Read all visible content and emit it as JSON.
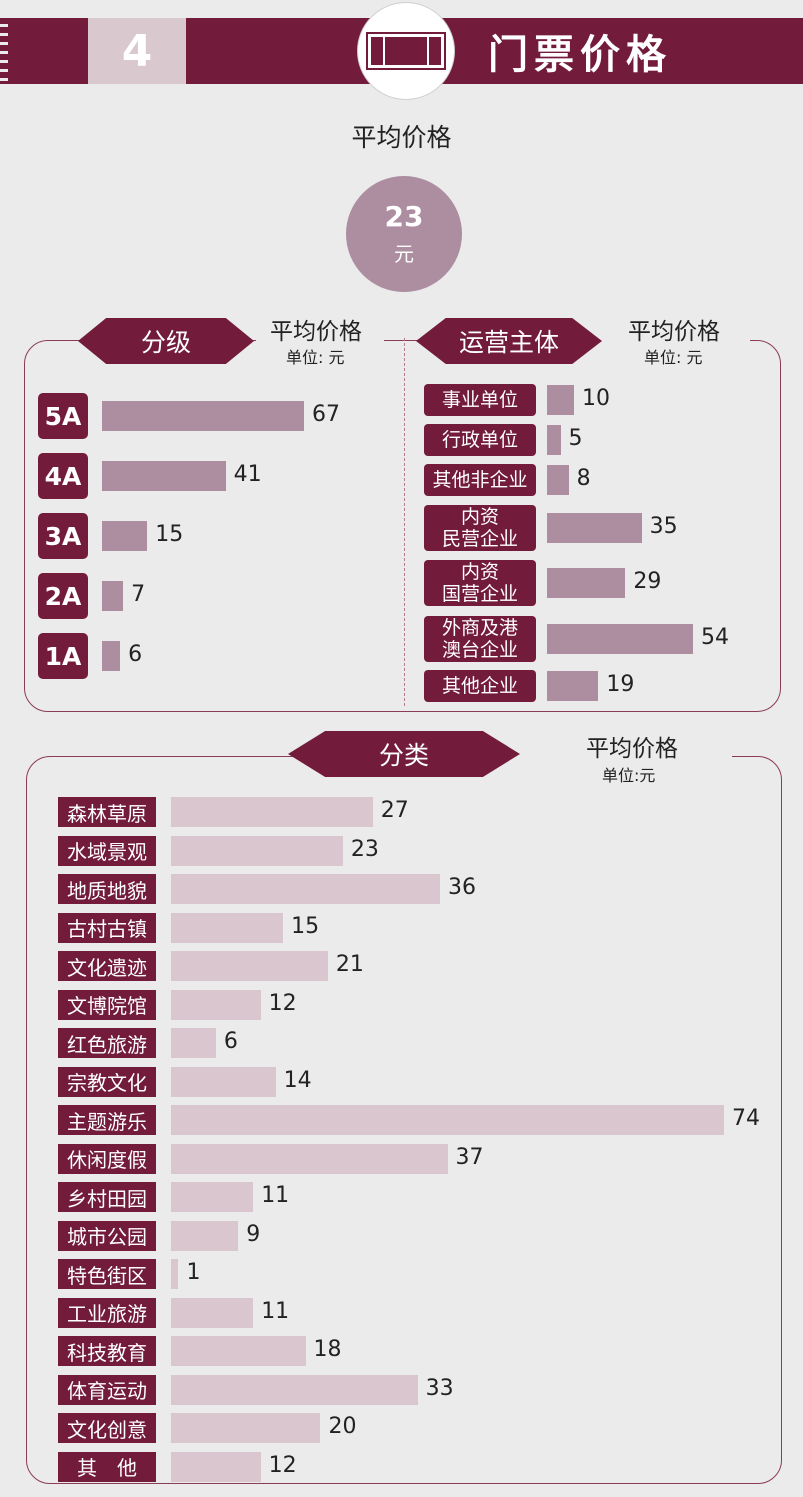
{
  "header": {
    "number": "4",
    "title": "门票价格"
  },
  "overall": {
    "label": "平均价格",
    "value": "23",
    "unit": "元"
  },
  "chart_data": [
    {
      "type": "bar",
      "title": "分级",
      "subtitle": "平均价格",
      "unit_label": "单位: 元",
      "categories": [
        "5A",
        "4A",
        "3A",
        "2A",
        "1A"
      ],
      "values": [
        67,
        41,
        15,
        7,
        6
      ]
    },
    {
      "type": "bar",
      "title": "运营主体",
      "subtitle": "平均价格",
      "unit_label": "单位: 元",
      "categories": [
        "事业单位",
        "行政单位",
        "其他非企业",
        "内资\n民营企业",
        "内资\n国营企业",
        "外商及港\n澳台企业",
        "其他企业"
      ],
      "values": [
        10,
        5,
        8,
        35,
        29,
        54,
        19
      ]
    },
    {
      "type": "bar",
      "title": "分类",
      "subtitle": "平均价格",
      "unit_label": "单位:元",
      "categories": [
        "森林草原",
        "水域景观",
        "地质地貌",
        "古村古镇",
        "文化遗迹",
        "文博院馆",
        "红色旅游",
        "宗教文化",
        "主题游乐",
        "休闲度假",
        "乡村田园",
        "城市公园",
        "特色街区",
        "工业旅游",
        "科技教育",
        "体育运动",
        "文化创意",
        "其　他"
      ],
      "values": [
        27,
        23,
        36,
        15,
        21,
        12,
        6,
        14,
        74,
        37,
        11,
        9,
        1,
        11,
        18,
        33,
        20,
        12
      ]
    }
  ]
}
